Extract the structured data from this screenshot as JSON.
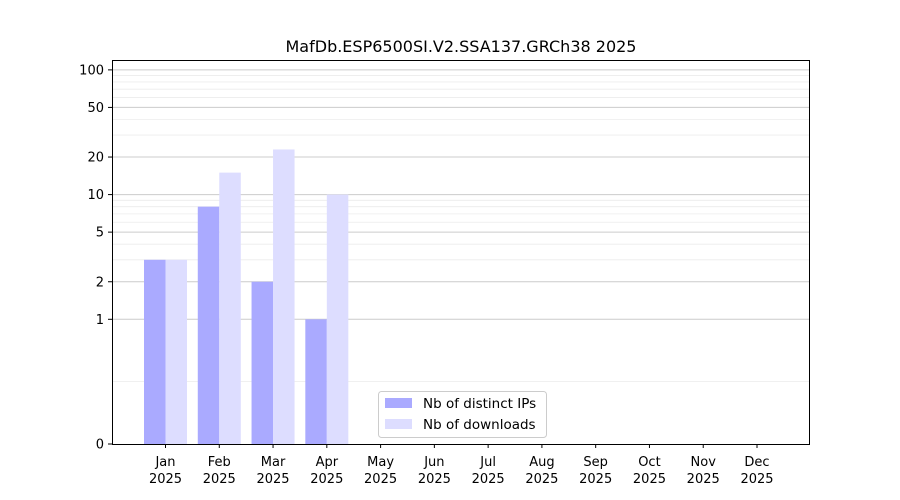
{
  "chart_data": {
    "type": "bar",
    "title": "MafDb.ESP6500SI.V2.SSA137.GRCh38 2025",
    "xlabel": "",
    "ylabel": "",
    "yscale": "symlog",
    "ylim": [
      0,
      120
    ],
    "yticks": [
      0,
      1,
      2,
      5,
      10,
      20,
      50,
      100
    ],
    "categories": [
      {
        "month": "Jan",
        "year": "2025"
      },
      {
        "month": "Feb",
        "year": "2025"
      },
      {
        "month": "Mar",
        "year": "2025"
      },
      {
        "month": "Apr",
        "year": "2025"
      },
      {
        "month": "May",
        "year": "2025"
      },
      {
        "month": "Jun",
        "year": "2025"
      },
      {
        "month": "Jul",
        "year": "2025"
      },
      {
        "month": "Aug",
        "year": "2025"
      },
      {
        "month": "Sep",
        "year": "2025"
      },
      {
        "month": "Oct",
        "year": "2025"
      },
      {
        "month": "Nov",
        "year": "2025"
      },
      {
        "month": "Dec",
        "year": "2025"
      }
    ],
    "series": [
      {
        "name": "Nb of distinct IPs",
        "color": "#aaaaff",
        "values": [
          3,
          8,
          2,
          1,
          0,
          0,
          0,
          0,
          0,
          0,
          0,
          0
        ]
      },
      {
        "name": "Nb of downloads",
        "color": "#ddddff",
        "values": [
          3,
          15,
          23,
          10,
          0,
          0,
          0,
          0,
          0,
          0,
          0,
          0
        ]
      }
    ],
    "grid": true,
    "legend_position": "lower-center"
  }
}
